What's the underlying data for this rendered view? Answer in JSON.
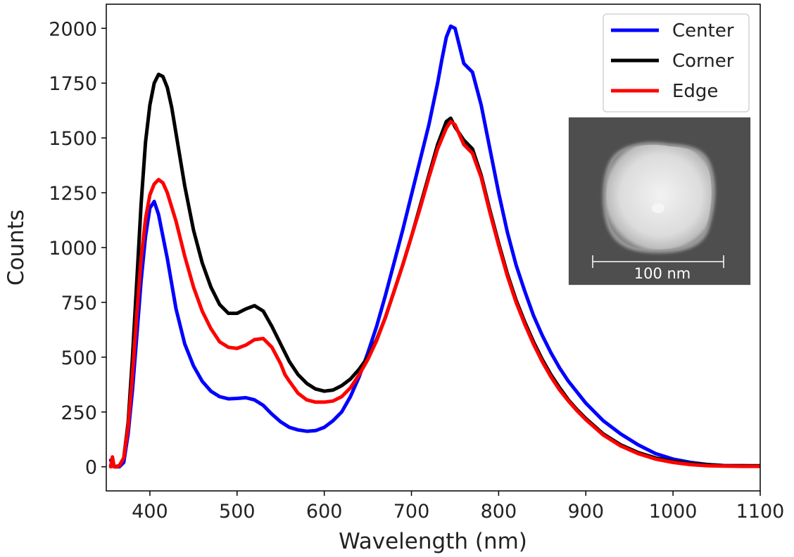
{
  "chart_data": {
    "type": "line",
    "title": "",
    "xlabel": "Wavelength (nm)",
    "ylabel": "Counts",
    "xlim": [
      350,
      1100
    ],
    "ylim": [
      -110,
      2110
    ],
    "xticks": [
      400,
      500,
      600,
      700,
      800,
      900,
      1000,
      1100
    ],
    "yticks": [
      0,
      250,
      500,
      750,
      1000,
      1250,
      1500,
      1750,
      2000
    ],
    "grid": false,
    "legend_position": "top-right",
    "series": [
      {
        "name": "Center",
        "color": "#0000ff",
        "x": [
          355,
          360,
          365,
          370,
          375,
          380,
          385,
          390,
          395,
          400,
          405,
          410,
          415,
          420,
          430,
          440,
          450,
          460,
          470,
          480,
          490,
          500,
          510,
          520,
          530,
          540,
          550,
          560,
          570,
          580,
          590,
          600,
          610,
          620,
          630,
          640,
          650,
          660,
          670,
          680,
          690,
          700,
          710,
          720,
          730,
          735,
          740,
          745,
          750,
          755,
          760,
          765,
          770,
          780,
          790,
          800,
          810,
          820,
          830,
          840,
          850,
          860,
          870,
          880,
          890,
          900,
          920,
          940,
          960,
          980,
          1000,
          1020,
          1040,
          1060,
          1080,
          1100
        ],
        "y": [
          30,
          0,
          0,
          20,
          150,
          350,
          600,
          850,
          1050,
          1180,
          1210,
          1150,
          1050,
          950,
          720,
          560,
          460,
          390,
          345,
          320,
          310,
          312,
          315,
          305,
          280,
          240,
          205,
          180,
          168,
          162,
          165,
          180,
          210,
          250,
          320,
          410,
          520,
          640,
          780,
          930,
          1080,
          1240,
          1400,
          1560,
          1750,
          1860,
          1960,
          2010,
          2000,
          1920,
          1840,
          1820,
          1800,
          1650,
          1450,
          1250,
          1070,
          920,
          800,
          690,
          600,
          520,
          450,
          390,
          340,
          290,
          210,
          150,
          100,
          60,
          35,
          20,
          10,
          5,
          5,
          3
        ]
      },
      {
        "name": "Corner",
        "color": "#000000",
        "x": [
          355,
          360,
          365,
          370,
          375,
          380,
          385,
          390,
          395,
          400,
          405,
          410,
          415,
          420,
          425,
          430,
          440,
          450,
          460,
          470,
          480,
          490,
          500,
          510,
          520,
          530,
          540,
          550,
          560,
          570,
          580,
          590,
          600,
          610,
          620,
          630,
          640,
          650,
          660,
          670,
          680,
          690,
          700,
          710,
          720,
          730,
          740,
          745,
          750,
          760,
          770,
          780,
          790,
          800,
          810,
          820,
          830,
          840,
          850,
          860,
          870,
          880,
          890,
          900,
          920,
          940,
          960,
          980,
          1000,
          1020,
          1040,
          1060,
          1080,
          1100
        ],
        "y": [
          5,
          0,
          5,
          40,
          200,
          500,
          850,
          1200,
          1480,
          1650,
          1750,
          1790,
          1780,
          1730,
          1640,
          1520,
          1280,
          1080,
          930,
          820,
          740,
          700,
          700,
          720,
          735,
          710,
          640,
          560,
          480,
          420,
          380,
          355,
          345,
          350,
          370,
          400,
          445,
          500,
          580,
          680,
          800,
          920,
          1050,
          1190,
          1330,
          1470,
          1575,
          1590,
          1550,
          1490,
          1450,
          1330,
          1170,
          1020,
          880,
          760,
          660,
          570,
          490,
          420,
          360,
          305,
          260,
          220,
          150,
          100,
          65,
          40,
          25,
          15,
          10,
          5,
          5,
          5
        ]
      },
      {
        "name": "Edge",
        "color": "#ff0000",
        "x": [
          355,
          357,
          359,
          362,
          365,
          370,
          375,
          380,
          385,
          390,
          395,
          400,
          405,
          410,
          415,
          420,
          430,
          440,
          450,
          460,
          470,
          480,
          490,
          500,
          510,
          520,
          530,
          540,
          550,
          555,
          560,
          570,
          580,
          590,
          600,
          610,
          620,
          630,
          640,
          650,
          660,
          670,
          680,
          690,
          700,
          710,
          720,
          730,
          740,
          745,
          750,
          760,
          770,
          780,
          790,
          800,
          810,
          820,
          830,
          840,
          850,
          860,
          870,
          880,
          890,
          900,
          920,
          940,
          960,
          980,
          1000,
          1020,
          1040,
          1060,
          1080,
          1100
        ],
        "y": [
          0,
          45,
          0,
          0,
          5,
          40,
          180,
          420,
          700,
          950,
          1130,
          1240,
          1290,
          1310,
          1295,
          1250,
          1120,
          960,
          820,
          710,
          630,
          570,
          545,
          540,
          555,
          580,
          585,
          545,
          470,
          420,
          390,
          335,
          305,
          295,
          295,
          300,
          320,
          360,
          420,
          490,
          575,
          680,
          800,
          920,
          1050,
          1180,
          1320,
          1450,
          1545,
          1575,
          1560,
          1470,
          1430,
          1320,
          1160,
          1010,
          870,
          750,
          650,
          560,
          480,
          410,
          350,
          300,
          255,
          215,
          145,
          95,
          60,
          35,
          20,
          10,
          5,
          3,
          2,
          2
        ]
      }
    ],
    "inset": {
      "scale_bar_label": "100 nm"
    }
  }
}
